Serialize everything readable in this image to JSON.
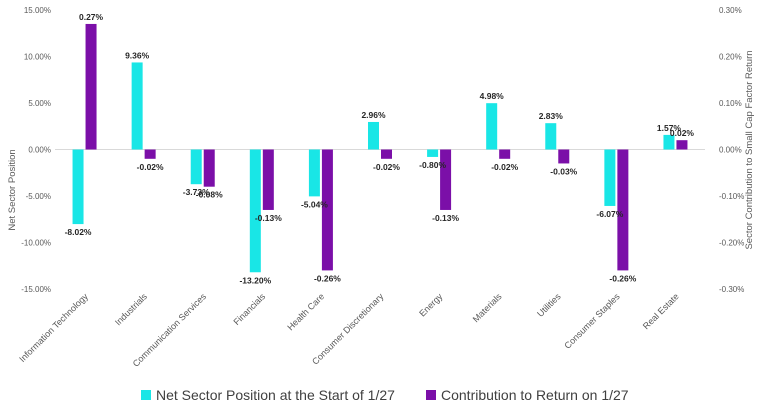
{
  "chart_data": {
    "type": "bar",
    "categories": [
      "Information Technology",
      "Industrials",
      "Communication Services",
      "Financials",
      "Health Care",
      "Consumer Discretionary",
      "Energy",
      "Materials",
      "Utilities",
      "Consumer Staples",
      "Real Estate"
    ],
    "series": [
      {
        "name": "Net Sector Position at the Start of 1/27",
        "axis": "left",
        "color": "#19E6E6",
        "values": [
          -8.02,
          9.36,
          -3.73,
          -13.2,
          -5.04,
          2.96,
          -0.8,
          4.98,
          2.83,
          -6.07,
          1.57
        ],
        "labels": [
          "-8.02%",
          "9.36%",
          "-3.73%",
          "-13.20%",
          "-5.04%",
          "2.96%",
          "-0.80%",
          "4.98%",
          "2.83%",
          "-6.07%",
          "1.57%"
        ]
      },
      {
        "name": "Contribution to Return on 1/27",
        "axis": "right",
        "color": "#7B0FA8",
        "values": [
          0.27,
          -0.02,
          -0.08,
          -0.13,
          -0.26,
          -0.02,
          -0.13,
          -0.02,
          -0.03,
          -0.26,
          0.02
        ],
        "labels": [
          "0.27%",
          "-0.02%",
          "-0.08%",
          "-0.13%",
          "-0.26%",
          "-0.02%",
          "-0.13%",
          "-0.02%",
          "-0.03%",
          "-0.26%",
          "0.02%"
        ]
      }
    ],
    "ylabel": "Net Sector Position",
    "y2label": "Sector Contribution to Small Cap Factor Return",
    "ylim": [
      -15,
      15
    ],
    "y2lim": [
      -0.3,
      0.3
    ],
    "yticks": [
      "15.00%",
      "10.00%",
      "5.00%",
      "0.00%",
      "-5.00%",
      "-10.00%",
      "-15.00%"
    ],
    "y2ticks": [
      "0.30%",
      "0.20%",
      "0.10%",
      "0.00%",
      "-0.10%",
      "-0.20%",
      "-0.30%"
    ],
    "grid": false,
    "legend_position": "bottom"
  }
}
